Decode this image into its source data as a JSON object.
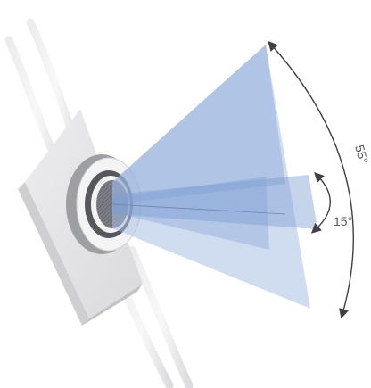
{
  "labels": {
    "wide_angle": "55°",
    "narrow_angle": "15°"
  },
  "colors": {
    "wide_beam": "#a9bfe3",
    "narrow_beam": "#8aa7d8",
    "beam_core": "#7f9dd2",
    "arc_line": "#3d4046",
    "label_text": "#555a60",
    "housing": "#e4e4e6",
    "housing_shade": "#c8c8cb",
    "sensor_ring": "#9d9fa3",
    "sensor_face": "#6f7278"
  },
  "icons": {
    "sensor": "ultrasonic-sensor-icon"
  }
}
